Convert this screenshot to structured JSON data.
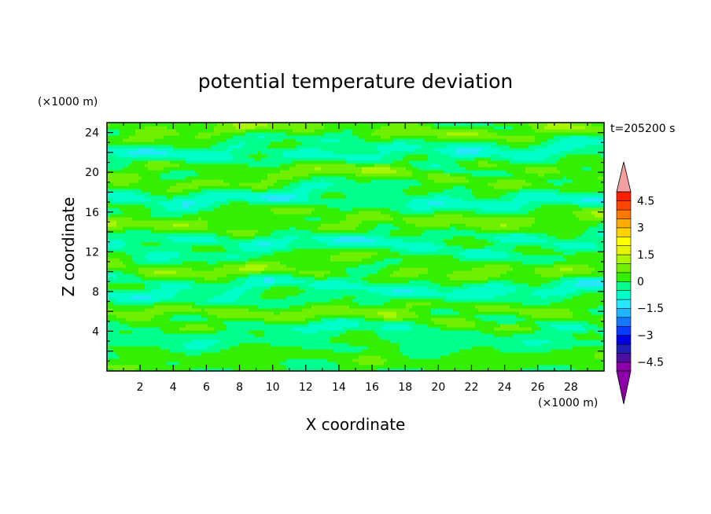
{
  "chart_data": {
    "type": "heatmap",
    "title": "potential temperature deviation",
    "xlabel": "X coordinate",
    "ylabel": "Z coordinate",
    "x_unit": "(×1000 m)",
    "y_unit": "(×1000 m)",
    "time_label": "t=205200 s",
    "xlim": [
      0,
      30
    ],
    "ylim": [
      0,
      25
    ],
    "xticks": [
      2,
      4,
      6,
      8,
      10,
      12,
      14,
      16,
      18,
      20,
      22,
      24,
      26,
      28
    ],
    "yticks": [
      4,
      8,
      12,
      16,
      20,
      24
    ],
    "colorbar": {
      "levels": [
        -5,
        -4.5,
        -4,
        -3.5,
        -3,
        -2.5,
        -2,
        -1.5,
        -1,
        -0.5,
        0,
        0.5,
        1,
        1.5,
        2,
        2.5,
        3,
        3.5,
        4,
        4.5,
        5
      ],
      "labels": [
        "4.5",
        "3",
        "1.5",
        "0",
        "−1.5",
        "−3",
        "−4.5"
      ],
      "label_values": [
        4.5,
        3,
        1.5,
        0,
        -1.5,
        -3,
        -4.5
      ],
      "colors": [
        "#8c00aa",
        "#4b0fa0",
        "#1f1fb4",
        "#0000e6",
        "#0a3cff",
        "#1478ff",
        "#1eb4ff",
        "#28e6ff",
        "#00ffc8",
        "#00ff8c",
        "#32f000",
        "#6ef000",
        "#aaf500",
        "#e6f500",
        "#ffff00",
        "#ffd200",
        "#ffaa00",
        "#ff7800",
        "#ff4600",
        "#ff1e00"
      ],
      "over_color": "#f5a0a0",
      "under_color": "#8c00aa"
    },
    "field_description_levels": {
      "z_max": 25,
      "dominant_range": [
        -1,
        1
      ]
    }
  }
}
